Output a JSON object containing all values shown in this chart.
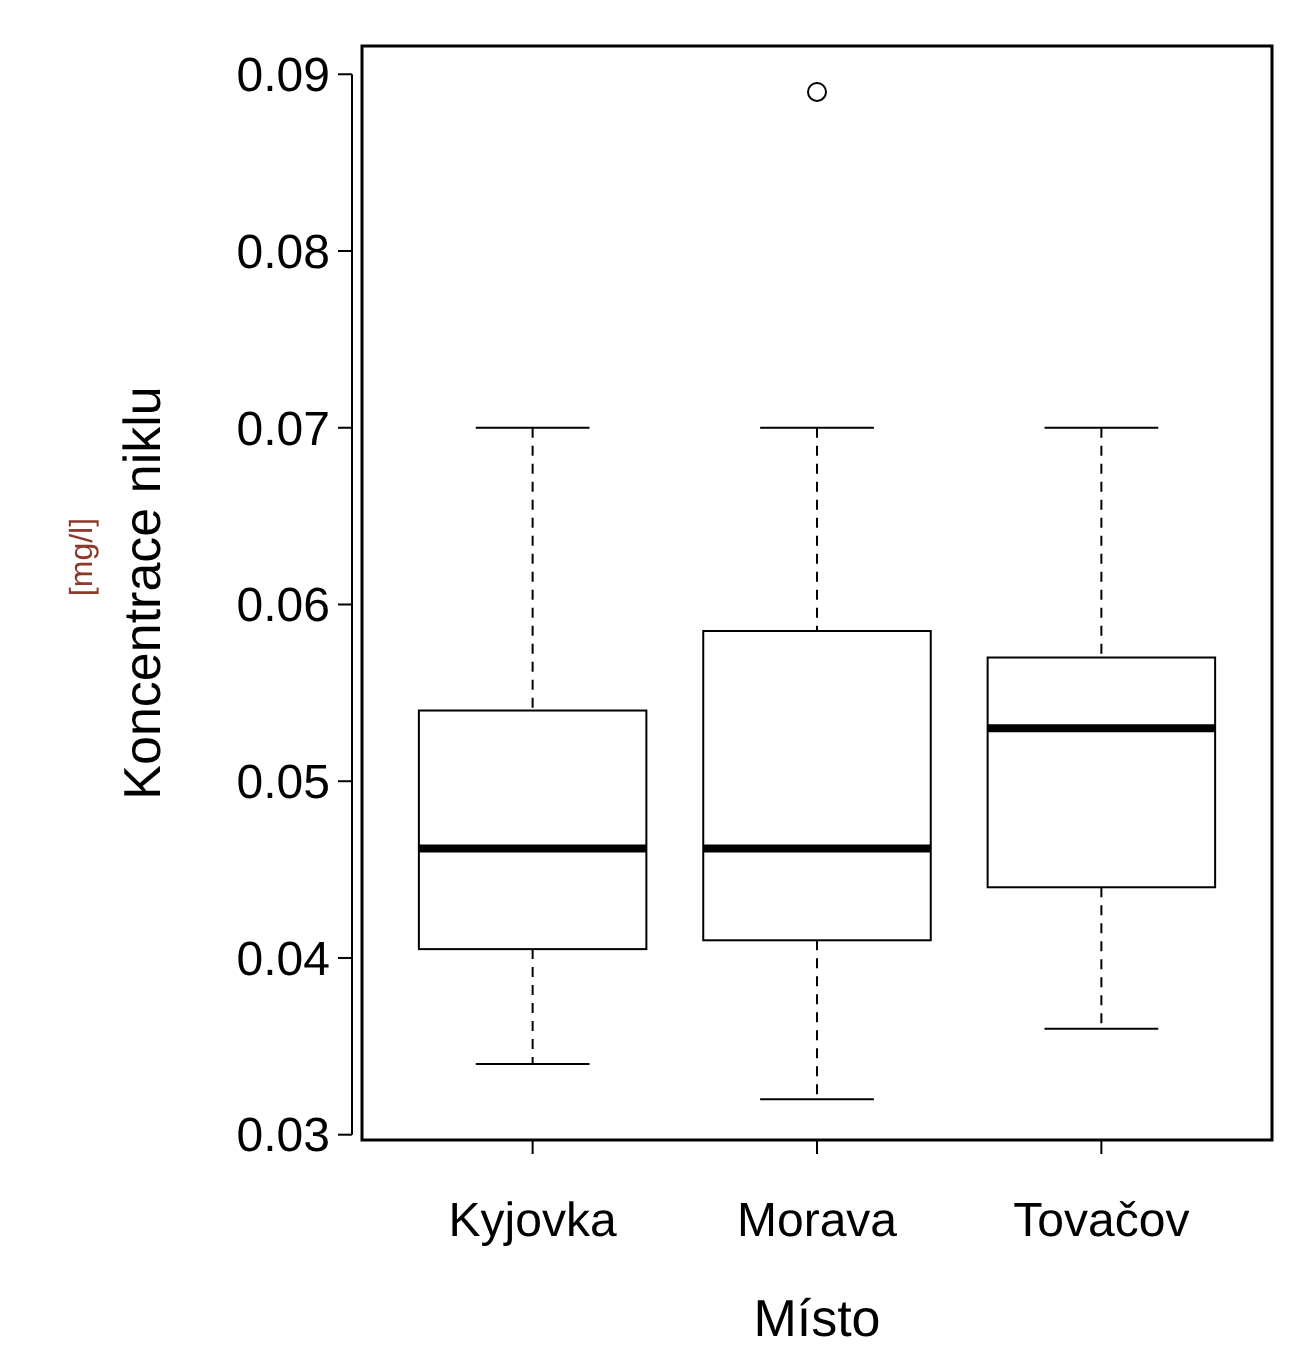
{
  "chart_data": {
    "type": "box",
    "xlabel": "Místo",
    "ylabel": "Koncentrace niklu",
    "annotations": [
      "[mg/l]"
    ],
    "categories": [
      "Kyjovka",
      "Morava",
      "Tovačov"
    ],
    "boxes": [
      {
        "low": 0.034,
        "q1": 0.0405,
        "median": 0.0462,
        "q3": 0.054,
        "high": 0.07
      },
      {
        "low": 0.032,
        "q1": 0.041,
        "median": 0.0462,
        "q3": 0.0585,
        "high": 0.07,
        "outliers": [
          0.089
        ]
      },
      {
        "low": 0.036,
        "q1": 0.044,
        "median": 0.053,
        "q3": 0.057,
        "high": 0.07
      }
    ],
    "ylim": [
      0.0297,
      0.0916
    ],
    "yticks": [
      {
        "value": 0.03,
        "label": "0.03"
      },
      {
        "value": 0.04,
        "label": "0.04"
      },
      {
        "value": 0.05,
        "label": "0.05"
      },
      {
        "value": 0.06,
        "label": "0.06"
      },
      {
        "value": 0.07,
        "label": "0.07"
      },
      {
        "value": 0.08,
        "label": "0.08"
      },
      {
        "value": 0.09,
        "label": "0.09"
      }
    ],
    "grid": false
  }
}
